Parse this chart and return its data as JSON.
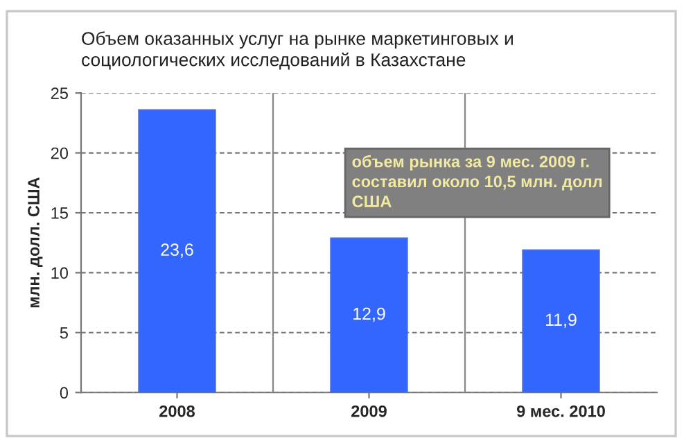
{
  "chart_data": {
    "type": "bar",
    "title": "Объем оказанных услуг на рынке маркетинговых и\nсоциологических исследований в Казахстане",
    "ylabel": "млн. долл. США",
    "categories": [
      "2008",
      "2009",
      "9 мес. 2010"
    ],
    "values": [
      23.6,
      12.9,
      11.9
    ],
    "value_labels": [
      "23,6",
      "12,9",
      "11,9"
    ],
    "color": "#3366ff",
    "ylim": [
      0,
      25
    ],
    "yticks": [
      0,
      5,
      10,
      15,
      20,
      25
    ],
    "grid": true,
    "annotations": [
      "объем рынка за 9 мес. 2009 г.\nсоставил около 10,5 млн. долл\nСША"
    ]
  }
}
